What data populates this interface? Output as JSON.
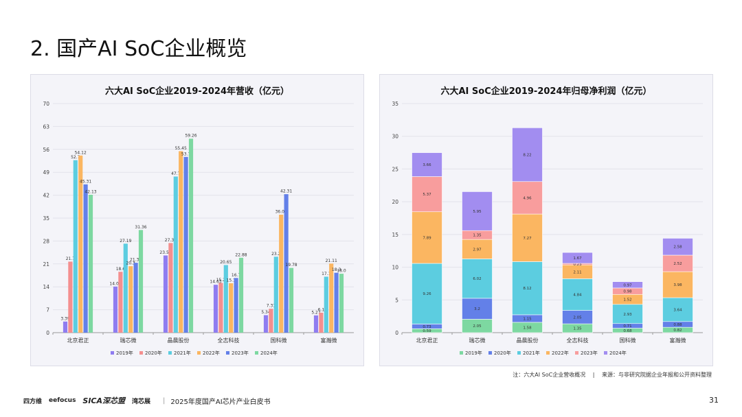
{
  "page": {
    "title": "2. 国产AI SoC企业概览",
    "note": "注：六大AI SoC企业营收概况",
    "source_sep": "|",
    "source": "来源：与非研究院据企业年报和公开资料整理",
    "footer": {
      "logos": [
        "四方维",
        "eefocus",
        "SICA深芯盟",
        "湾芯展"
      ],
      "text": "2025年度国产AI芯片产业白皮书",
      "page_number": "31"
    }
  },
  "chart_data": [
    {
      "type": "bar",
      "title": "六大AI SoC企业2019-2024年营收（亿元）",
      "categories": [
        "北京君正",
        "瑞芯微",
        "晶晨股份",
        "全志科技",
        "国科微",
        "富瀚微"
      ],
      "ylim": [
        0,
        70
      ],
      "yticks": [
        0,
        7,
        14,
        21,
        28,
        35,
        42,
        49,
        56,
        63,
        70
      ],
      "series": [
        {
          "name": "2019年",
          "color": "#8f7cf0",
          "values": [
            3.39,
            14.08,
            23.58,
            14.63,
            5.34,
            5.27
          ],
          "labels": [
            "3.39",
            "14.08",
            "23.58",
            "14.63",
            "5.34",
            "5.27"
          ]
        },
        {
          "name": "2020年",
          "color": "#f48f8f",
          "values": [
            21.7,
            18.6,
            27.38,
            15.2,
            7.31,
            6.1
          ],
          "labels": [
            "21.7",
            "18.6",
            "27.38",
            "15.2",
            "7.31",
            "6.1"
          ]
        },
        {
          "name": "2021年",
          "color": "#5ccde0",
          "values": [
            52.7,
            27.19,
            47.7,
            20.65,
            23.2,
            17.1
          ],
          "labels": [
            "52.7",
            "27.19",
            "47.7",
            "20.65",
            "23.2",
            "17.1"
          ]
        },
        {
          "name": "2022年",
          "color": "#fbb661",
          "values": [
            54.12,
            20.3,
            55.45,
            15.1,
            36.05,
            21.11
          ],
          "labels": [
            "54.12",
            "20.3",
            "55.45",
            "15.1",
            "36.05",
            "21.11"
          ]
        },
        {
          "name": "2023年",
          "color": "#6380e8",
          "values": [
            45.31,
            21.35,
            53.7,
            16.7,
            42.31,
            18.3
          ],
          "labels": [
            "45.31",
            "21.35",
            "53.7",
            "16.7",
            "42.31",
            "18.3"
          ]
        },
        {
          "name": "2024年",
          "color": "#7dd8a1",
          "values": [
            42.13,
            31.36,
            59.26,
            22.88,
            19.78,
            18.0
          ],
          "labels": [
            "42.13",
            "31.36",
            "59.26",
            "22.88",
            "19.78",
            "18.0"
          ]
        }
      ]
    },
    {
      "type": "bar",
      "stacked": true,
      "title": "六大AI SoC企业2019-2024年归母净利润（亿元）",
      "categories": [
        "北京君正",
        "瑞芯微",
        "晶晨股份",
        "全志科技",
        "国科微",
        "富瀚微"
      ],
      "ylim": [
        0,
        35
      ],
      "yticks": [
        0,
        5,
        10,
        15,
        20,
        25,
        30,
        35
      ],
      "series": [
        {
          "name": "2019年",
          "color": "#7dd8a1",
          "values": [
            0.59,
            2.05,
            1.58,
            1.35,
            0.68,
            0.82
          ],
          "labels": [
            "0.59",
            "2.05",
            "1.58",
            "1.35",
            "0.68",
            "0.82"
          ]
        },
        {
          "name": "2020年",
          "color": "#6380e8",
          "values": [
            0.73,
            3.2,
            1.15,
            2.05,
            0.71,
            0.88
          ],
          "labels": [
            "0.73",
            "3.2",
            "1.15",
            "2.05",
            "0.71",
            "0.88"
          ]
        },
        {
          "name": "2021年",
          "color": "#5ccde0",
          "values": [
            9.26,
            6.02,
            8.12,
            4.84,
            2.93,
            3.64
          ],
          "labels": [
            "9.26",
            "6.02",
            "8.12",
            "4.84",
            "2.93",
            "3.64"
          ]
        },
        {
          "name": "2022年",
          "color": "#fbb661",
          "values": [
            7.89,
            2.97,
            7.27,
            2.11,
            1.52,
            3.98
          ],
          "labels": [
            "7.89",
            "2.97",
            "7.27",
            "2.11",
            "1.52",
            "3.98"
          ]
        },
        {
          "name": "2023年",
          "color": "#f89d9d",
          "values": [
            5.37,
            1.35,
            4.96,
            0.23,
            0.98,
            2.52
          ],
          "labels": [
            "5.37",
            "1.35",
            "4.96",
            "0.23",
            "0.98",
            "2.52"
          ]
        },
        {
          "name": "2024年",
          "color": "#a28df0",
          "values": [
            3.66,
            5.95,
            8.22,
            1.67,
            0.97,
            2.58
          ],
          "labels": [
            "3.66",
            "5.95",
            "8.22",
            "1.67",
            "0.97",
            "2.58"
          ]
        }
      ]
    }
  ]
}
